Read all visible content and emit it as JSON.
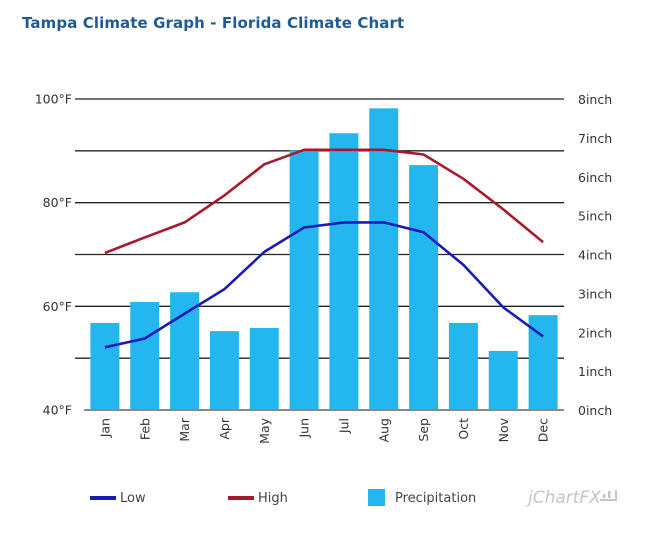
{
  "page": {
    "title": "Tampa Climate Graph - Florida Climate Chart"
  },
  "chart_data": {
    "type": "bar",
    "title": "Tampa Climate Graph - Florida Climate Chart",
    "categories": [
      "Jan",
      "Feb",
      "Mar",
      "Apr",
      "May",
      "Jun",
      "Jul",
      "Aug",
      "Sep",
      "Oct",
      "Nov",
      "Dec"
    ],
    "left_axis": {
      "unit": "°F",
      "ylim": [
        40,
        100
      ],
      "ticks": [
        40,
        50,
        60,
        70,
        80,
        90,
        100
      ],
      "tick_labels": [
        "40°F",
        "",
        "60°F",
        "",
        "80°F",
        "",
        "100°F"
      ]
    },
    "right_axis": {
      "unit": "inch",
      "ylim": [
        0,
        8
      ],
      "ticks": [
        0,
        1,
        2,
        3,
        4,
        5,
        6,
        7,
        8
      ],
      "tick_labels": [
        "0inch",
        "1inch",
        "2inch",
        "3inch",
        "4inch",
        "5inch",
        "6inch",
        "7inch",
        "8inch"
      ]
    },
    "grid": true,
    "series": [
      {
        "name": "Low",
        "type": "line",
        "axis": "left",
        "color": "#1a1ab8",
        "values": [
          52.1,
          53.8,
          58.6,
          63.3,
          70.5,
          75.2,
          76.2,
          76.2,
          74.3,
          68.0,
          59.8,
          54.2
        ]
      },
      {
        "name": "High",
        "type": "line",
        "axis": "left",
        "color": "#a8192e",
        "values": [
          70.3,
          73.3,
          76.2,
          81.4,
          87.4,
          90.2,
          90.2,
          90.2,
          89.3,
          84.6,
          78.7,
          72.4
        ]
      },
      {
        "name": "Precipitation",
        "type": "bar",
        "axis": "right",
        "color": "#24b6ef",
        "values": [
          2.24,
          2.78,
          3.03,
          2.03,
          2.11,
          6.68,
          7.12,
          7.76,
          6.3,
          2.24,
          1.52,
          2.44
        ]
      }
    ],
    "legend": {
      "position": "bottom",
      "entries": [
        "Low",
        "High",
        "Precipitation"
      ]
    }
  },
  "watermark": "jChartFX"
}
